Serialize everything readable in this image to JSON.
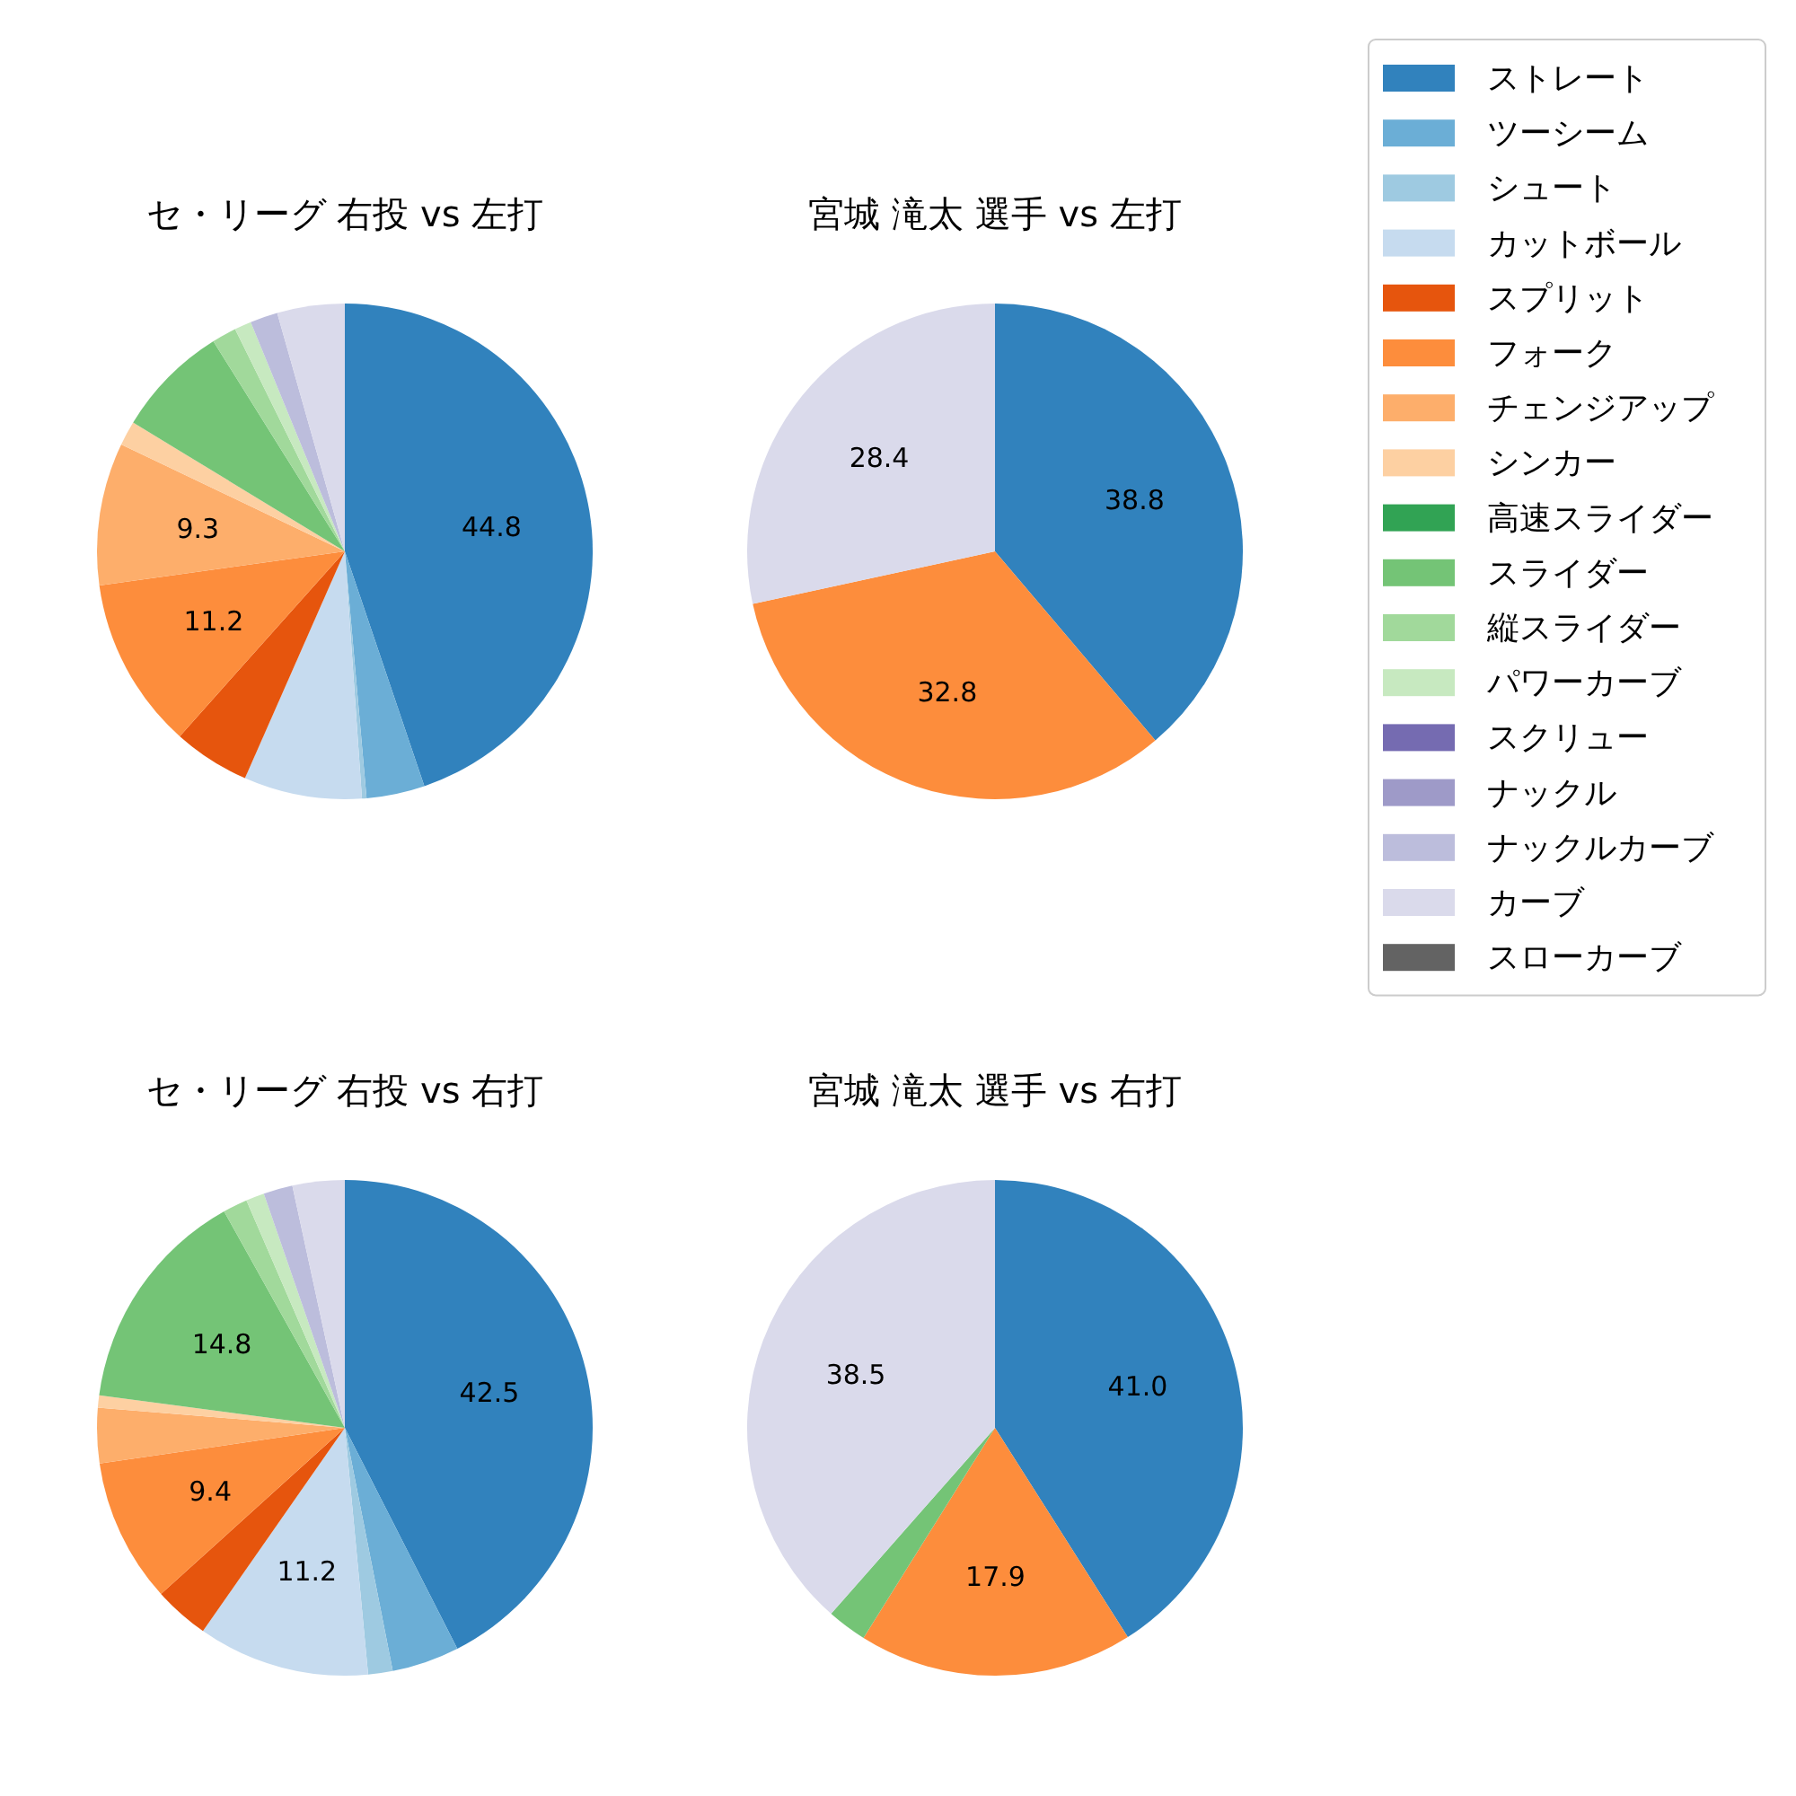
{
  "chart_data": [
    {
      "type": "pie",
      "title": "セ・リーグ 右投 vs 左打",
      "legend": "right",
      "categories": [
        "ストレート",
        "ツーシーム",
        "シュート",
        "カットボール",
        "スプリット",
        "フォーク",
        "チェンジアップ",
        "シンカー",
        "高速スライダー",
        "スライダー",
        "縦スライダー",
        "パワーカーブ",
        "スクリュー",
        "ナックル",
        "ナックルカーブ",
        "カーブ",
        "スローカーブ"
      ],
      "values": [
        44.8,
        3.8,
        0.3,
        7.7,
        5.0,
        11.2,
        9.3,
        1.6,
        0,
        7.4,
        1.6,
        1.1,
        0,
        0,
        1.8,
        4.4,
        0
      ],
      "value_labels": [
        "44.8",
        null,
        null,
        null,
        null,
        "11.2",
        "9.3",
        null,
        null,
        null,
        null,
        null,
        null,
        null,
        null,
        null,
        null
      ],
      "colors": [
        "#3182bd",
        "#6baed6",
        "#9ecae1",
        "#c6dbef",
        "#e6550d",
        "#fd8d3c",
        "#fdae6b",
        "#fdd0a2",
        "#31a354",
        "#74c476",
        "#a1d99b",
        "#c7e9c0",
        "#756bb1",
        "#9e9ac8",
        "#bcbddc",
        "#dadaeb",
        "#636363"
      ]
    },
    {
      "type": "pie",
      "title": "宮城 滝太 選手 vs 左打",
      "categories": [
        null,
        null,
        null
      ],
      "values": [
        38.8,
        32.8,
        28.4
      ],
      "value_labels": [
        "38.8",
        "32.8",
        "28.4"
      ],
      "colors": [
        "#3182bd",
        "#fd8d3c",
        "#dadaeb"
      ]
    },
    {
      "type": "pie",
      "title": "セ・リーグ 右投 vs 右打",
      "categories": [
        null,
        null,
        null,
        null,
        null,
        null,
        null,
        null,
        null,
        null,
        null,
        null,
        null
      ],
      "values": [
        42.5,
        4.4,
        1.6,
        11.2,
        3.6,
        9.4,
        3.6,
        0.8,
        14.8,
        1.6,
        1.2,
        1.9,
        3.4
      ],
      "value_labels": [
        "42.5",
        null,
        null,
        "11.2",
        null,
        "9.4",
        null,
        null,
        "14.8",
        null,
        null,
        null,
        null
      ],
      "colors": [
        "#3182bd",
        "#6baed6",
        "#9ecae1",
        "#c6dbef",
        "#e6550d",
        "#fd8d3c",
        "#fdae6b",
        "#fdd0a2",
        "#74c476",
        "#a1d99b",
        "#c7e9c0",
        "#bcbddc",
        "#dadaeb"
      ]
    },
    {
      "type": "pie",
      "title": "宮城 滝太 選手 vs 右打",
      "categories": [
        null,
        null,
        null,
        null
      ],
      "values": [
        41.0,
        17.9,
        2.6,
        38.5
      ],
      "value_labels": [
        "41.0",
        "17.9",
        null,
        "38.5"
      ],
      "colors": [
        "#3182bd",
        "#fd8d3c",
        "#74c476",
        "#dadaeb"
      ]
    }
  ]
}
